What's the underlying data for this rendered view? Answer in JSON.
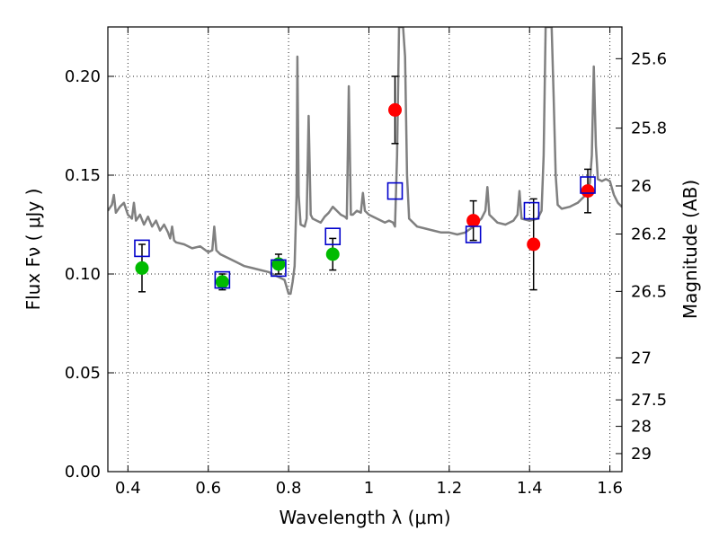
{
  "chart_data": {
    "type": "scatter",
    "xlabel": "Wavelength  λ (μm)",
    "ylabel": "Flux  Fν  ( μJy )",
    "y2label": "Magnitude (AB)",
    "xlim": [
      0.35,
      1.63
    ],
    "ylim": [
      0.0,
      0.225
    ],
    "grid": true,
    "x_ticks": [
      {
        "value": 0.4,
        "label": "0.4"
      },
      {
        "value": 0.6,
        "label": "0.6"
      },
      {
        "value": 0.8,
        "label": "0.8"
      },
      {
        "value": 1.0,
        "label": "1"
      },
      {
        "value": 1.2,
        "label": "1.2"
      },
      {
        "value": 1.4,
        "label": "1.4"
      },
      {
        "value": 1.6,
        "label": "1.6"
      }
    ],
    "y_ticks": [
      {
        "value": 0.0,
        "label": "0.00"
      },
      {
        "value": 0.05,
        "label": "0.05"
      },
      {
        "value": 0.1,
        "label": "0.10"
      },
      {
        "value": 0.15,
        "label": "0.15"
      },
      {
        "value": 0.2,
        "label": "0.20"
      }
    ],
    "magnitude_ticks": [
      "25.6",
      "25.8",
      "26",
      "26.2",
      "26.5",
      "27",
      "27.5",
      "28",
      "29"
    ],
    "series": [
      {
        "marker": "circle",
        "color": "#00bb00",
        "points": [
          {
            "x": 0.435,
            "y": 0.103,
            "err": 0.012
          },
          {
            "x": 0.635,
            "y": 0.096,
            "err": 0.004
          },
          {
            "x": 0.775,
            "y": 0.105,
            "err": 0.005
          },
          {
            "x": 0.91,
            "y": 0.11,
            "err": 0.008
          }
        ]
      },
      {
        "marker": "circle",
        "color": "#ff0000",
        "points": [
          {
            "x": 1.065,
            "y": 0.183,
            "err": 0.017
          },
          {
            "x": 1.26,
            "y": 0.127,
            "err": 0.01
          },
          {
            "x": 1.41,
            "y": 0.115,
            "err": 0.023
          },
          {
            "x": 1.545,
            "y": 0.142,
            "err": 0.011
          }
        ]
      },
      {
        "marker": "open-square",
        "color": "#0000cc",
        "points": [
          {
            "x": 0.435,
            "y": 0.113
          },
          {
            "x": 0.635,
            "y": 0.097
          },
          {
            "x": 0.775,
            "y": 0.103
          },
          {
            "x": 0.91,
            "y": 0.119
          },
          {
            "x": 1.065,
            "y": 0.142
          },
          {
            "x": 1.26,
            "y": 0.12
          },
          {
            "x": 1.405,
            "y": 0.132
          },
          {
            "x": 1.545,
            "y": 0.145
          }
        ]
      }
    ],
    "model_spectrum": {
      "color": "#808080",
      "points": [
        [
          0.35,
          0.132
        ],
        [
          0.36,
          0.135
        ],
        [
          0.365,
          0.14
        ],
        [
          0.37,
          0.131
        ],
        [
          0.38,
          0.134
        ],
        [
          0.39,
          0.136
        ],
        [
          0.4,
          0.13
        ],
        [
          0.41,
          0.128
        ],
        [
          0.415,
          0.136
        ],
        [
          0.42,
          0.127
        ],
        [
          0.43,
          0.13
        ],
        [
          0.44,
          0.125
        ],
        [
          0.45,
          0.129
        ],
        [
          0.46,
          0.124
        ],
        [
          0.47,
          0.127
        ],
        [
          0.48,
          0.122
        ],
        [
          0.49,
          0.125
        ],
        [
          0.5,
          0.121
        ],
        [
          0.505,
          0.118
        ],
        [
          0.51,
          0.124
        ],
        [
          0.515,
          0.117
        ],
        [
          0.52,
          0.116
        ],
        [
          0.54,
          0.115
        ],
        [
          0.56,
          0.113
        ],
        [
          0.58,
          0.114
        ],
        [
          0.6,
          0.111
        ],
        [
          0.61,
          0.112
        ],
        [
          0.615,
          0.124
        ],
        [
          0.62,
          0.112
        ],
        [
          0.63,
          0.11
        ],
        [
          0.65,
          0.108
        ],
        [
          0.67,
          0.106
        ],
        [
          0.69,
          0.104
        ],
        [
          0.71,
          0.103
        ],
        [
          0.73,
          0.102
        ],
        [
          0.75,
          0.101
        ],
        [
          0.77,
          0.099
        ],
        [
          0.78,
          0.098
        ],
        [
          0.79,
          0.097
        ],
        [
          0.8,
          0.09
        ],
        [
          0.805,
          0.09
        ],
        [
          0.81,
          0.096
        ],
        [
          0.815,
          0.104
        ],
        [
          0.82,
          0.14
        ],
        [
          0.822,
          0.21
        ],
        [
          0.825,
          0.14
        ],
        [
          0.83,
          0.125
        ],
        [
          0.84,
          0.124
        ],
        [
          0.845,
          0.128
        ],
        [
          0.85,
          0.18
        ],
        [
          0.855,
          0.13
        ],
        [
          0.86,
          0.128
        ],
        [
          0.87,
          0.127
        ],
        [
          0.88,
          0.126
        ],
        [
          0.89,
          0.129
        ],
        [
          0.9,
          0.131
        ],
        [
          0.91,
          0.134
        ],
        [
          0.93,
          0.13
        ],
        [
          0.94,
          0.129
        ],
        [
          0.945,
          0.128
        ],
        [
          0.95,
          0.195
        ],
        [
          0.955,
          0.13
        ],
        [
          0.96,
          0.13
        ],
        [
          0.97,
          0.132
        ],
        [
          0.98,
          0.131
        ],
        [
          0.985,
          0.141
        ],
        [
          0.99,
          0.132
        ],
        [
          1.0,
          0.13
        ],
        [
          1.02,
          0.128
        ],
        [
          1.04,
          0.126
        ],
        [
          1.05,
          0.127
        ],
        [
          1.06,
          0.126
        ],
        [
          1.065,
          0.124
        ],
        [
          1.07,
          0.16
        ],
        [
          1.075,
          0.225
        ],
        [
          1.085,
          0.225
        ],
        [
          1.09,
          0.21
        ],
        [
          1.095,
          0.15
        ],
        [
          1.1,
          0.128
        ],
        [
          1.12,
          0.124
        ],
        [
          1.14,
          0.123
        ],
        [
          1.16,
          0.122
        ],
        [
          1.18,
          0.121
        ],
        [
          1.2,
          0.121
        ],
        [
          1.22,
          0.12
        ],
        [
          1.24,
          0.121
        ],
        [
          1.26,
          0.124
        ],
        [
          1.27,
          0.126
        ],
        [
          1.28,
          0.128
        ],
        [
          1.29,
          0.132
        ],
        [
          1.295,
          0.144
        ],
        [
          1.3,
          0.13
        ],
        [
          1.32,
          0.126
        ],
        [
          1.34,
          0.125
        ],
        [
          1.36,
          0.127
        ],
        [
          1.37,
          0.13
        ],
        [
          1.375,
          0.142
        ],
        [
          1.38,
          0.128
        ],
        [
          1.4,
          0.127
        ],
        [
          1.42,
          0.128
        ],
        [
          1.43,
          0.132
        ],
        [
          1.435,
          0.16
        ],
        [
          1.44,
          0.225
        ],
        [
          1.455,
          0.225
        ],
        [
          1.46,
          0.19
        ],
        [
          1.465,
          0.15
        ],
        [
          1.47,
          0.135
        ],
        [
          1.48,
          0.133
        ],
        [
          1.5,
          0.134
        ],
        [
          1.52,
          0.136
        ],
        [
          1.53,
          0.138
        ],
        [
          1.54,
          0.14
        ],
        [
          1.55,
          0.146
        ],
        [
          1.555,
          0.16
        ],
        [
          1.56,
          0.205
        ],
        [
          1.565,
          0.165
        ],
        [
          1.57,
          0.148
        ],
        [
          1.58,
          0.147
        ],
        [
          1.59,
          0.148
        ],
        [
          1.6,
          0.147
        ],
        [
          1.61,
          0.14
        ],
        [
          1.62,
          0.136
        ],
        [
          1.63,
          0.134
        ]
      ]
    }
  }
}
